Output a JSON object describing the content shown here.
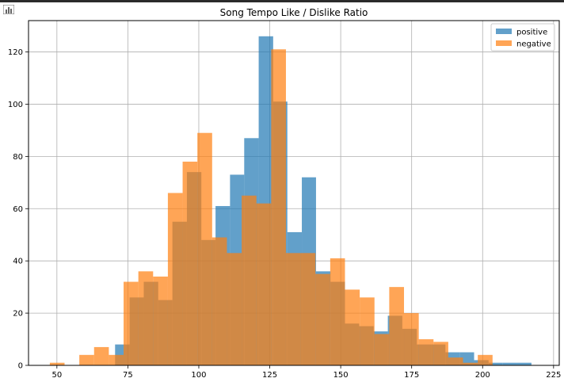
{
  "chart_data": {
    "type": "bar",
    "title": "Song Tempo Like / Dislike Ratio",
    "xlabel": "",
    "ylabel": "",
    "xlim": [
      40,
      227
    ],
    "ylim": [
      0,
      132
    ],
    "grid": true,
    "legend": "top-right",
    "xticks": [
      50,
      75,
      100,
      125,
      150,
      175,
      200,
      225
    ],
    "yticks": [
      0,
      20,
      40,
      60,
      80,
      100,
      120
    ],
    "series": [
      {
        "name": "positive",
        "color": "#1f77b4",
        "bins": [
          [
            70.5,
            75.6,
            8
          ],
          [
            75.6,
            80.6,
            26
          ],
          [
            80.6,
            85.7,
            32
          ],
          [
            85.7,
            90.7,
            25
          ],
          [
            90.7,
            95.8,
            55
          ],
          [
            95.8,
            100.9,
            74
          ],
          [
            100.9,
            105.9,
            48
          ],
          [
            105.9,
            111.0,
            61
          ],
          [
            111.0,
            116.0,
            73
          ],
          [
            116.0,
            121.1,
            87
          ],
          [
            121.1,
            126.2,
            126
          ],
          [
            126.2,
            131.2,
            101
          ],
          [
            131.2,
            136.3,
            51
          ],
          [
            136.3,
            141.3,
            72
          ],
          [
            141.3,
            146.4,
            36
          ],
          [
            146.4,
            151.5,
            32
          ],
          [
            151.5,
            156.5,
            16
          ],
          [
            156.5,
            161.6,
            15
          ],
          [
            161.6,
            166.6,
            13
          ],
          [
            166.6,
            171.7,
            19
          ],
          [
            171.7,
            176.8,
            14
          ],
          [
            176.8,
            181.8,
            8
          ],
          [
            181.8,
            186.9,
            8
          ],
          [
            186.9,
            191.9,
            5
          ],
          [
            191.9,
            197.0,
            5
          ],
          [
            197.0,
            202.1,
            2
          ],
          [
            202.1,
            207.1,
            1
          ],
          [
            207.1,
            212.2,
            1
          ],
          [
            212.2,
            217.2,
            1
          ]
        ]
      },
      {
        "name": "negative",
        "color": "#ff7f0e",
        "bins": [
          [
            47.5,
            52.7,
            1
          ],
          [
            57.9,
            63.1,
            4
          ],
          [
            63.1,
            68.3,
            7
          ],
          [
            68.3,
            73.5,
            4
          ],
          [
            73.5,
            78.7,
            32
          ],
          [
            78.7,
            83.9,
            36
          ],
          [
            83.9,
            89.1,
            34
          ],
          [
            89.1,
            94.3,
            66
          ],
          [
            94.3,
            99.5,
            78
          ],
          [
            99.5,
            104.7,
            89
          ],
          [
            104.7,
            109.9,
            49
          ],
          [
            109.9,
            115.1,
            43
          ],
          [
            115.1,
            120.3,
            65
          ],
          [
            120.3,
            125.5,
            62
          ],
          [
            125.5,
            130.7,
            121
          ],
          [
            130.7,
            135.9,
            43
          ],
          [
            135.9,
            141.1,
            43
          ],
          [
            141.1,
            146.3,
            35
          ],
          [
            146.3,
            151.5,
            41
          ],
          [
            151.5,
            156.7,
            29
          ],
          [
            156.7,
            161.9,
            26
          ],
          [
            161.9,
            167.1,
            12
          ],
          [
            167.1,
            172.3,
            30
          ],
          [
            172.3,
            177.5,
            20
          ],
          [
            177.5,
            182.7,
            10
          ],
          [
            182.7,
            187.9,
            9
          ],
          [
            187.9,
            193.1,
            3
          ],
          [
            193.1,
            198.3,
            1
          ],
          [
            198.3,
            203.5,
            4
          ]
        ]
      }
    ]
  }
}
